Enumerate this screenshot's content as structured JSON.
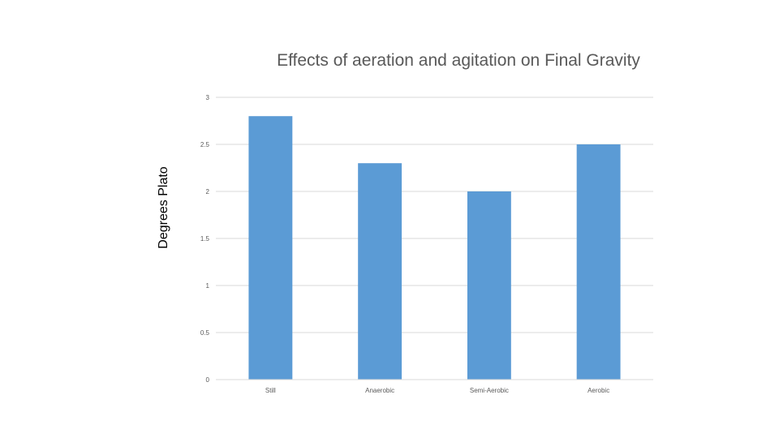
{
  "chart_data": {
    "type": "bar",
    "title": "Effects of aeration and agitation on Final Gravity",
    "xlabel": "",
    "ylabel": "Degrees Plato",
    "categories": [
      "Still",
      "Anaerobic",
      "Semi-Aerobic",
      "Aerobic"
    ],
    "series": [
      {
        "values": [
          2.8,
          2.3,
          2.0,
          2.5
        ]
      }
    ],
    "ylim": [
      0,
      3
    ],
    "yticks": [
      "0",
      "0.5",
      "1",
      "1.5",
      "2",
      "2.5",
      "3"
    ],
    "grid": true,
    "legend": "none",
    "bar_color": "#5B9BD5",
    "grid_color": "#D9D9D9"
  }
}
